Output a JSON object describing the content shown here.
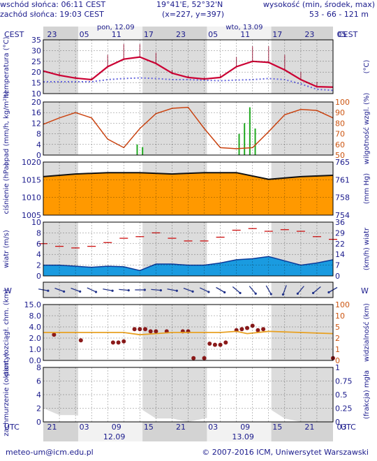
{
  "header": {
    "sunrise": "wschód słońca: 06:11 CEST",
    "sunset": "zachód słońca: 19:03 CEST",
    "coords": "19°41'E, 52°32'N",
    "grid": "(x=227, y=397)",
    "elevation_title": "wysokość (min, środek, max)",
    "elevation_values": "53 - 66 - 121 m"
  },
  "time_axis": {
    "top_tz": "CEST",
    "bottom_tz": "UTC",
    "top_hours": [
      "23",
      "05",
      "11",
      "17",
      "23",
      "05",
      "11",
      "17",
      "23",
      "05"
    ],
    "bottom_hours": [
      "21",
      "03",
      "09",
      "15",
      "21",
      "03",
      "09",
      "15",
      "21",
      "03"
    ],
    "day1_top": "pon, 12.09",
    "day2_top": "wto, 13.09",
    "day1_bottom": "12.09",
    "day2_bottom": "13.09"
  },
  "footer": {
    "email": "meteo-um@icm.edu.pl",
    "copyright": "© 2007-2016 ICM, Uniwersytet Warszawski"
  },
  "colors": {
    "night_band": "#d3d3d3",
    "temperature": "#cc0033",
    "dewpoint": "#6666dd",
    "humidity": "#cc4411",
    "precipitation": "#22aa22",
    "pressure_fill": "#ff9900",
    "wind_line": "#cc0000",
    "wind_fill": "#1a9be0",
    "visibility": "#e8a020",
    "cloud_fill": "#55aadd",
    "text": "#1a1a8c"
  },
  "chart_data": [
    {
      "type": "line",
      "panel": "temperature",
      "ylabel": "temperatura (°C)",
      "ylabel_right": "(°C)",
      "ylim": [
        10,
        35
      ],
      "ticks": [
        "35",
        "30",
        "25",
        "20",
        "15",
        "10"
      ],
      "x_hours_utc": [
        0,
        3,
        6,
        9,
        12,
        15,
        18,
        21,
        24,
        27,
        30,
        33,
        36,
        39,
        42,
        45,
        48,
        51,
        54
      ],
      "series": [
        {
          "name": "temperatura",
          "values": [
            20.5,
            18.5,
            17.2,
            16.5,
            22.5,
            26,
            27,
            24,
            19.5,
            17.5,
            16.8,
            17.5,
            22.5,
            25,
            24.5,
            21,
            16.5,
            13.2,
            13
          ]
        },
        {
          "name": "punkt rosy",
          "values": [
            15.5,
            15.5,
            15.5,
            15.5,
            16.5,
            17,
            17.3,
            17,
            16.5,
            16.5,
            16.2,
            16,
            16.3,
            16.5,
            17,
            16.5,
            14.5,
            12,
            11.5
          ]
        }
      ],
      "ensemble_max": [
        21,
        20,
        18,
        17.5,
        28,
        33,
        33,
        29,
        21,
        18.5,
        17.5,
        19,
        27,
        32,
        32,
        28,
        20,
        15.5,
        15
      ]
    },
    {
      "type": "line",
      "panel": "precipitation-humidity",
      "ylabel": "opad (mm/h, kg/m²h)",
      "ylabel_right": "wilgotność wzgl. (%)",
      "ylim": [
        0,
        20
      ],
      "ylim_right": [
        50,
        100
      ],
      "ticks": [
        "20",
        "16",
        "12",
        "8",
        "4",
        "0"
      ],
      "ticks_right": [
        "100",
        "90",
        "80",
        "70",
        "60",
        "50"
      ],
      "humidity_x": [
        0,
        3,
        6,
        9,
        12,
        15,
        18,
        21,
        24,
        27,
        30,
        33,
        36,
        39,
        42,
        45,
        48,
        51,
        54
      ],
      "humidity": [
        79,
        85,
        90,
        85,
        65,
        57,
        75,
        89,
        94,
        95,
        75,
        57,
        56,
        57,
        72,
        88,
        93,
        92,
        85
      ],
      "precip_bars": [
        {
          "hour": 17.5,
          "value": 4
        },
        {
          "hour": 18.5,
          "value": 3
        },
        {
          "hour": 36.5,
          "value": 8
        },
        {
          "hour": 37.5,
          "value": 12
        },
        {
          "hour": 38.5,
          "value": 18
        },
        {
          "hour": 39.5,
          "value": 10
        }
      ]
    },
    {
      "type": "area",
      "panel": "pressure",
      "ylabel": "ciśnienie (hPa)",
      "ylabel_right": "(mm Hg)",
      "ylim": [
        1005,
        1025
      ],
      "ticks": [
        "1020",
        "1015",
        "1010",
        "1005"
      ],
      "ticks_right": [
        "765",
        "761",
        "758",
        "754"
      ],
      "x_hours_utc": [
        0,
        6,
        12,
        18,
        24,
        30,
        36,
        42,
        48,
        54
      ],
      "values": [
        1019.5,
        1020.5,
        1021,
        1021,
        1020.5,
        1021,
        1021,
        1018.5,
        1019.5,
        1020
      ]
    },
    {
      "type": "area",
      "panel": "wind",
      "ylabel": "wiatr (m/s)",
      "ylabel_right": "(km/h) wiatr",
      "ylim": [
        0,
        10
      ],
      "ticks": [
        "10",
        "8",
        "6",
        "4",
        "2",
        "0"
      ],
      "ticks_right": [
        "36",
        "29",
        "22",
        "14",
        "7",
        "0"
      ],
      "x_hours_utc": [
        0,
        3,
        6,
        9,
        12,
        15,
        18,
        21,
        24,
        27,
        30,
        33,
        36,
        39,
        42,
        45,
        48,
        51,
        54
      ],
      "mean_speed": [
        2,
        2,
        1.8,
        1.6,
        1.8,
        1.7,
        1,
        2.2,
        2.2,
        2,
        2,
        2.4,
        3,
        3.2,
        3.6,
        2.8,
        2,
        2.4,
        3
      ],
      "gust_speed": [
        6,
        5.5,
        5.2,
        5.5,
        6.2,
        7,
        7.3,
        8,
        7,
        6.5,
        6.5,
        7.2,
        8.5,
        8.8,
        8.3,
        8.6,
        8.3,
        7.3,
        6.8
      ]
    },
    {
      "type": "scatter",
      "panel": "wind-direction",
      "ylabel": "W N S E",
      "x_hours_utc": [
        0,
        3,
        6,
        9,
        12,
        15,
        18,
        21,
        24,
        27,
        30,
        33,
        36,
        39,
        42,
        45,
        48,
        51,
        54
      ],
      "direction_deg": [
        100,
        110,
        110,
        115,
        100,
        95,
        90,
        95,
        100,
        110,
        115,
        120,
        130,
        140,
        150,
        200,
        220,
        230,
        240
      ]
    },
    {
      "type": "scatter",
      "panel": "cloudbase-visibility",
      "ylabel": "pion. rozciągł. chm. (km)",
      "ylabel_right": "widzialność (km)",
      "ylim": [
        0,
        15
      ],
      "ticks": [
        "15.0",
        "8.0",
        "4.0",
        "2.0",
        "1.0",
        "0.0"
      ],
      "ticks_right": [
        "100",
        "10",
        "5",
        "2",
        "1",
        "0"
      ],
      "cloud_base_hours": [
        2,
        7,
        13,
        14,
        15,
        17,
        18,
        19,
        20,
        21,
        23,
        26,
        27,
        28,
        30,
        31,
        32,
        33,
        34,
        36,
        37,
        38,
        39,
        40,
        41,
        54
      ],
      "cloud_base_km": [
        2.3,
        1.8,
        1.6,
        1.6,
        1.7,
        2.8,
        2.8,
        2.8,
        2.6,
        2.6,
        2.6,
        2.6,
        2.6,
        0.2,
        0.2,
        1.5,
        1.4,
        1.4,
        1.6,
        2.7,
        2.8,
        2.9,
        3.1,
        2.7,
        2.8,
        0.2
      ],
      "visibility_x": [
        0,
        6,
        12,
        15,
        18,
        21,
        24,
        30,
        33,
        36,
        38,
        42,
        48,
        54
      ],
      "visibility_km": [
        2.5,
        2.5,
        2.5,
        2.5,
        2.3,
        2.4,
        2.5,
        2.5,
        2.5,
        2.6,
        2.4,
        2.6,
        2.5,
        2.4
      ]
    },
    {
      "type": "area",
      "panel": "cloud-fog",
      "ylabel": "zachmurzenie (oktanty)",
      "ylabel_right": "(frakcja) mgła",
      "ylim": [
        0,
        8
      ],
      "ticks": [
        "8",
        "6",
        "4",
        "2",
        "0"
      ],
      "ticks_right": [
        "1",
        "0.75",
        "0.5",
        "0.25",
        "0"
      ],
      "x_hours_utc": [
        0,
        3,
        6,
        9,
        12,
        15,
        18,
        21,
        24,
        27,
        30,
        33,
        36,
        39,
        42,
        45,
        48,
        51,
        54
      ],
      "cloud_octants": [
        2,
        1,
        1,
        0.5,
        0.5,
        0,
        2,
        0.5,
        0.5,
        0,
        0.5,
        1,
        1.5,
        1,
        2,
        0.5,
        0,
        0,
        0
      ]
    }
  ]
}
